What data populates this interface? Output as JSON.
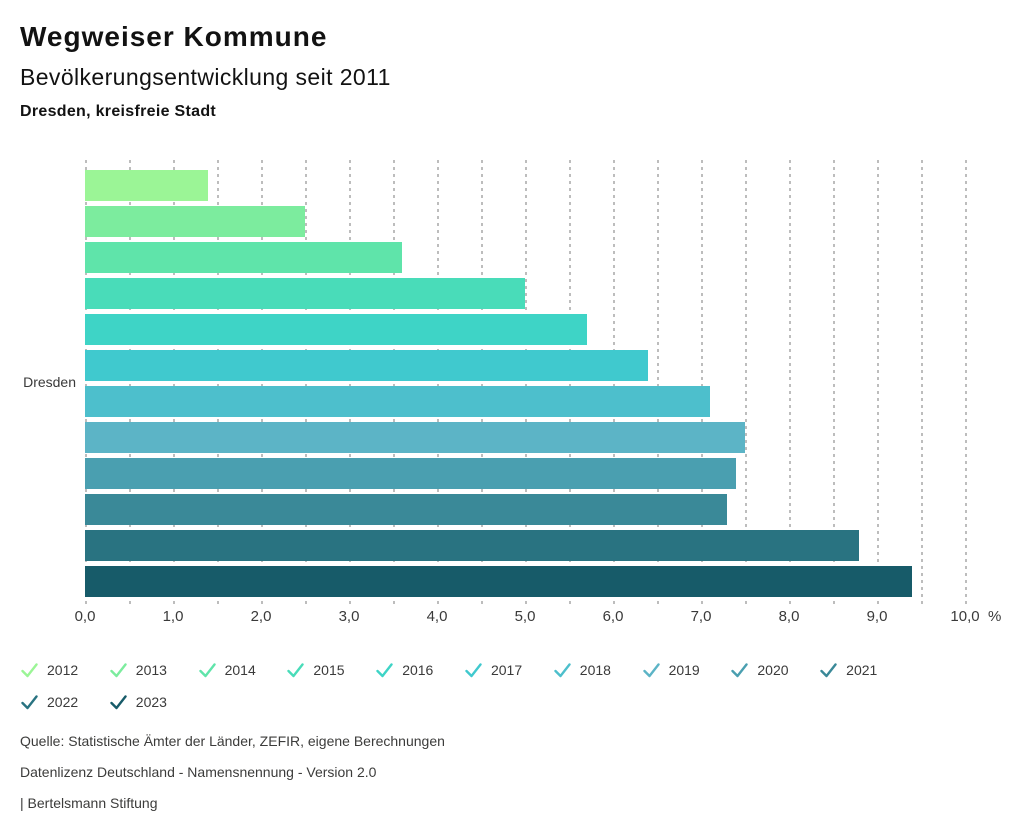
{
  "header": {
    "title": "Wegweiser Kommune"
  },
  "chart_data": {
    "type": "bar",
    "orientation": "horizontal",
    "title": "Bevölkerungsentwicklung seit 2011",
    "subtitle": "Dresden, kreisfreie Stadt",
    "group_label": "Dresden",
    "categories": [
      "2012",
      "2013",
      "2014",
      "2015",
      "2016",
      "2017",
      "2018",
      "2019",
      "2020",
      "2021",
      "2022",
      "2023"
    ],
    "values": [
      1.4,
      2.5,
      3.6,
      5.0,
      5.7,
      6.4,
      7.1,
      7.5,
      7.4,
      7.3,
      8.8,
      9.4
    ],
    "colors": [
      "#9bf596",
      "#7cec9e",
      "#5fe4aa",
      "#49dcb9",
      "#3ed4c6",
      "#40c9ce",
      "#4dbfcc",
      "#5cb4c6",
      "#4a9fb0",
      "#3a8998",
      "#297381",
      "#175b69"
    ],
    "unit": "%",
    "xlabel": "",
    "ylabel": "",
    "xlim": [
      0,
      10
    ],
    "x_ticks": [
      "0,0",
      "1,0",
      "2,0",
      "3,0",
      "4,0",
      "5,0",
      "6,0",
      "7,0",
      "8,0",
      "9,0",
      "10,0"
    ],
    "grid": {
      "vertical": true,
      "step": 0.5,
      "style": "dashed"
    },
    "legend_position": "bottom"
  },
  "footer": {
    "source": "Quelle: Statistische Ämter der Länder, ZEFIR, eigene Berechnungen",
    "license": "Datenlizenz Deutschland - Namensnennung - Version 2.0",
    "attribution": "| Bertelsmann Stiftung"
  }
}
